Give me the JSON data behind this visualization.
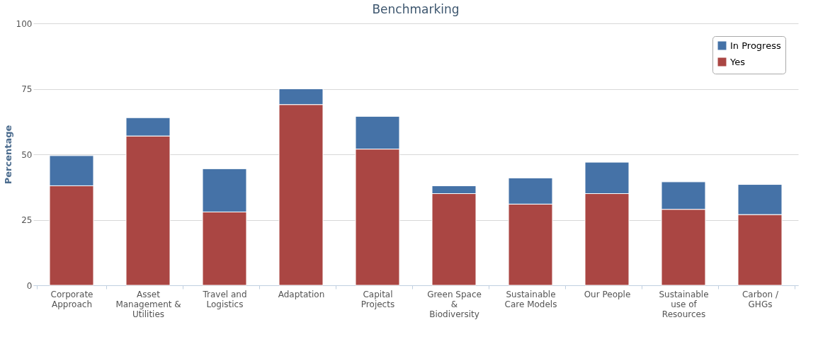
{
  "chart_data": {
    "type": "bar",
    "title": "Benchmarking",
    "ylabel": "Percentage",
    "stacked": true,
    "categories": [
      "Corporate Approach",
      "Asset Management & Utilities",
      "Travel and Logistics",
      "Adaptation",
      "Capital Projects",
      "Green Space & Biodiversity",
      "Sustainable Care Models",
      "Our People",
      "Sustainable use of Resources",
      "Carbon / GHGs"
    ],
    "series": [
      {
        "name": "Yes",
        "color": "#aa4643",
        "values": [
          38,
          57,
          28,
          69,
          52,
          35,
          31,
          35,
          29,
          27
        ]
      },
      {
        "name": "In Progress",
        "color": "#4572a7",
        "values": [
          11.5,
          7,
          16.5,
          6,
          12.5,
          3,
          10,
          12,
          10.5,
          11.5
        ]
      }
    ],
    "ylim": [
      0,
      100
    ],
    "yticks": [
      0,
      25,
      50,
      75,
      100
    ],
    "grid": "y",
    "legend": "top right"
  }
}
